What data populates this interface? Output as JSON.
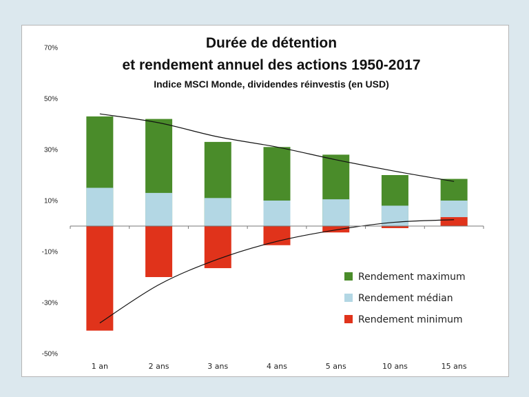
{
  "chart_data": {
    "type": "bar",
    "title_line1": "Durée de détention",
    "title_line2": "et rendement annuel des actions 1950-2017",
    "subtitle": "Indice MSCI Monde, dividendes réinvestis (en USD)",
    "categories": [
      "1 an",
      "2 ans",
      "3 ans",
      "4 ans",
      "5 ans",
      "10 ans",
      "15 ans"
    ],
    "series": [
      {
        "name": "Rendement maximum",
        "values": [
          43,
          42,
          33,
          31,
          28,
          20,
          18.5
        ],
        "color": "#4a8c2a"
      },
      {
        "name": "Rendement médian",
        "values": [
          15,
          13,
          11,
          10,
          10.5,
          8,
          10
        ],
        "color": "#b3d7e4"
      },
      {
        "name": "Rendement minimum",
        "values": [
          -41,
          -20,
          -16.5,
          -7.5,
          -2.5,
          -0.8,
          3.5
        ],
        "color": "#e0331b"
      }
    ],
    "ylim": [
      -50,
      70
    ],
    "yticks": [
      -50,
      -30,
      -10,
      10,
      30,
      50,
      70
    ],
    "ytick_labels": [
      "-50%",
      "-30%",
      "-10%",
      "10%",
      "30%",
      "50%",
      "70%"
    ],
    "legend_position": "bottom-right",
    "trend_max": [
      44,
      40.5,
      35,
      31,
      26,
      21.5,
      17.5
    ],
    "trend_min": [
      -38,
      -23,
      -13,
      -6,
      -1.5,
      1.5,
      2.5
    ],
    "grid": false
  }
}
